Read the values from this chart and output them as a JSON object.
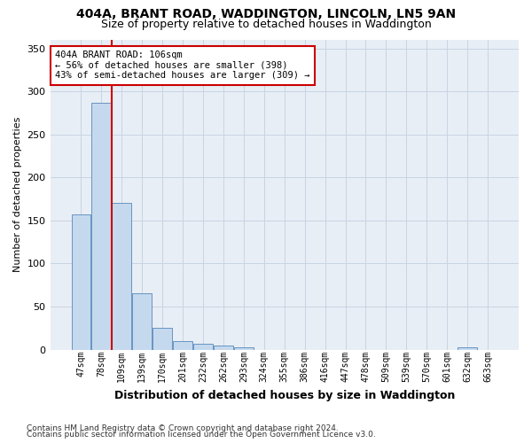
{
  "title_line1": "404A, BRANT ROAD, WADDINGTON, LINCOLN, LN5 9AN",
  "title_line2": "Size of property relative to detached houses in Waddington",
  "xlabel": "Distribution of detached houses by size in Waddington",
  "ylabel": "Number of detached properties",
  "footnote1": "Contains HM Land Registry data © Crown copyright and database right 2024.",
  "footnote2": "Contains public sector information licensed under the Open Government Licence v3.0.",
  "bar_color": "#c5d9ee",
  "bar_edge_color": "#5588bb",
  "grid_color": "#c8d4e3",
  "background_color": "#e8eef5",
  "vline_color": "#cc0000",
  "annotation_box_edgecolor": "#cc0000",
  "annotation_text_line1": "404A BRANT ROAD: 106sqm",
  "annotation_text_line2": "← 56% of detached houses are smaller (398)",
  "annotation_text_line3": "43% of semi-detached houses are larger (309) →",
  "vline_bin_index": 1.5,
  "categories": [
    "47sqm",
    "78sqm",
    "109sqm",
    "139sqm",
    "170sqm",
    "201sqm",
    "232sqm",
    "262sqm",
    "293sqm",
    "324sqm",
    "355sqm",
    "386sqm",
    "416sqm",
    "447sqm",
    "478sqm",
    "509sqm",
    "539sqm",
    "570sqm",
    "601sqm",
    "632sqm",
    "663sqm"
  ],
  "values": [
    157,
    287,
    170,
    65,
    25,
    10,
    7,
    5,
    3,
    0,
    0,
    0,
    0,
    0,
    0,
    0,
    0,
    0,
    0,
    3,
    0
  ],
  "ylim": [
    0,
    360
  ],
  "yticks": [
    0,
    50,
    100,
    150,
    200,
    250,
    300,
    350
  ]
}
